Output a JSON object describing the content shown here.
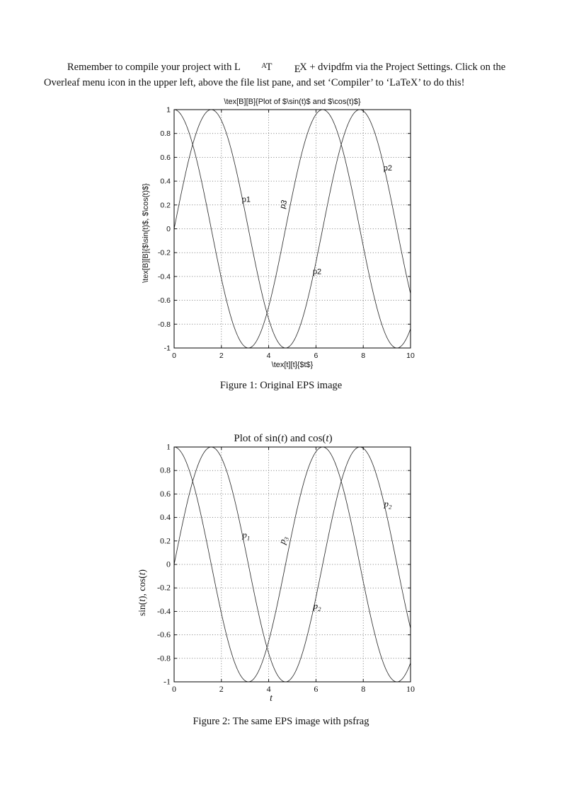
{
  "intro": {
    "before_logo": "Remember to compile your project with ",
    "logo": {
      "L": "L",
      "A": "A",
      "T": "T",
      "E": "E",
      "X": "X"
    },
    "line1_after_logo": " + dvipdfm via the Project Settings. Click on the Overleaf",
    "line2": "menu icon in the upper left, above the file list pane, and set ‘Compiler’ to ‘LaTeX’ to do this!"
  },
  "chart_data": [
    {
      "type": "line",
      "font": "sans",
      "title": [
        {
          "t": "\\tex[B][B]{Plot of $\\sin(t)$ and $\\cos(t)$}"
        }
      ],
      "xlabel": [
        {
          "t": "\\tex[t][t]{$t$}"
        }
      ],
      "ylabel": [
        {
          "t": "\\tex[B][B]{$\\sin(t)$, $\\cos(t)$}"
        }
      ],
      "caption": "Figure 1: Original EPS image",
      "x_range": [
        0,
        10
      ],
      "ylim": [
        -1,
        1
      ],
      "xticks": [
        "0",
        "2",
        "4",
        "6",
        "8",
        "10"
      ],
      "yticks": [
        "1",
        "0.8",
        "0.6",
        "0.4",
        "0.2",
        "0",
        "-0.2",
        "-0.4",
        "-0.6",
        "-0.8",
        "-1"
      ],
      "grid": true,
      "series": [
        {
          "name": "sin(t)",
          "fn": "sin"
        },
        {
          "name": "cos(t)",
          "fn": "cos"
        }
      ],
      "annotations": [
        {
          "x": 3.05,
          "y": 0.225,
          "rot": 0,
          "label": [
            {
              "t": "p1"
            }
          ]
        },
        {
          "x": 4.72,
          "y": 0.2,
          "rot": -73,
          "label": [
            {
              "t": "p3"
            }
          ]
        },
        {
          "x": 6.05,
          "y": -0.38,
          "rot": 0,
          "label": [
            {
              "t": "p2"
            }
          ]
        },
        {
          "x": 9.04,
          "y": 0.49,
          "rot": 0,
          "label": [
            {
              "t": "p2"
            }
          ]
        }
      ]
    },
    {
      "type": "line",
      "font": "serif",
      "title": [
        {
          "t": "Plot of sin("
        },
        {
          "t": "t",
          "i": true
        },
        {
          "t": ") and cos("
        },
        {
          "t": "t",
          "i": true
        },
        {
          "t": ")"
        }
      ],
      "xlabel": [
        {
          "t": "t",
          "i": true
        }
      ],
      "ylabel": [
        {
          "t": "sin("
        },
        {
          "t": "t",
          "i": true
        },
        {
          "t": "), cos("
        },
        {
          "t": "t",
          "i": true
        },
        {
          "t": ")"
        }
      ],
      "caption": "Figure 2: The same EPS image with psfrag",
      "x_range": [
        0,
        10
      ],
      "ylim": [
        -1,
        1
      ],
      "xticks": [
        "0",
        "2",
        "4",
        "6",
        "8",
        "10"
      ],
      "yticks": [
        "1",
        "0.8",
        "0.6",
        "0.4",
        "0.2",
        "0",
        "-0.2",
        "-0.4",
        "-0.6",
        "-0.8",
        "-1"
      ],
      "grid": true,
      "series": [
        {
          "name": "sin(t)",
          "fn": "sin"
        },
        {
          "name": "cos(t)",
          "fn": "cos"
        }
      ],
      "annotations": [
        {
          "x": 3.05,
          "y": 0.225,
          "rot": 0,
          "label": [
            {
              "t": "p",
              "i": true
            },
            {
              "t": "1",
              "i": true,
              "sub": true
            }
          ]
        },
        {
          "x": 4.72,
          "y": 0.2,
          "rot": -73,
          "label": [
            {
              "t": "p",
              "i": true
            },
            {
              "t": "3",
              "i": true,
              "sub": true
            }
          ]
        },
        {
          "x": 6.05,
          "y": -0.38,
          "rot": 0,
          "label": [
            {
              "t": "p",
              "i": true
            },
            {
              "t": "2",
              "i": true,
              "sub": true
            }
          ]
        },
        {
          "x": 9.04,
          "y": 0.49,
          "rot": 0,
          "label": [
            {
              "t": "p",
              "i": true
            },
            {
              "t": "2",
              "i": true,
              "sub": true
            }
          ]
        }
      ]
    }
  ]
}
